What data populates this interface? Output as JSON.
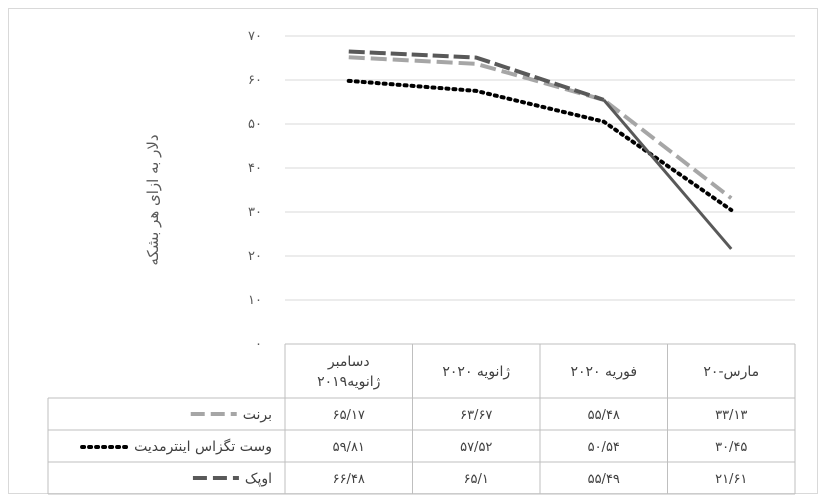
{
  "chart_data": {
    "type": "line",
    "title": "",
    "ylabel": "دلار به ازای هر بشکه",
    "ylim": [
      0,
      70
    ],
    "yticks": [
      0,
      10,
      20,
      30,
      40,
      50,
      60,
      70
    ],
    "ytick_labels": [
      "۰",
      "۱۰",
      "۲۰",
      "۳۰",
      "۴۰",
      "۵۰",
      "۶۰",
      "۷۰"
    ],
    "categories": [
      "دسامبر ۲۰۱۹ژانویه",
      "ژانویه ۲۰۲۰",
      "فوریه ۲۰۲۰",
      "مارس-۲۰"
    ],
    "series": [
      {
        "name": "برنت",
        "values": [
          65.17,
          63.67,
          55.48,
          33.13
        ],
        "labels": [
          "۶۵/۱۷",
          "۶۳/۶۷",
          "۵۵/۴۸",
          "۳۳/۱۳"
        ],
        "color": "#a6a6a6",
        "style": "dash"
      },
      {
        "name": "وست تگزاس اینترمدیت",
        "values": [
          59.81,
          57.52,
          50.54,
          30.45
        ],
        "labels": [
          "۵۹/۸۱",
          "۵۷/۵۲",
          "۵۰/۵۴",
          "۳۰/۴۵"
        ],
        "color": "#000000",
        "style": "dot"
      },
      {
        "name": "اوپک",
        "values": [
          66.48,
          65.1,
          55.49,
          21.61
        ],
        "labels": [
          "۶۶/۴۸",
          "۶۵/۱",
          "۵۵/۴۹",
          "۲۱/۶۱"
        ],
        "color": "#595959",
        "style": "dash-solid-end"
      }
    ],
    "grid": true,
    "legend": "data-table"
  }
}
